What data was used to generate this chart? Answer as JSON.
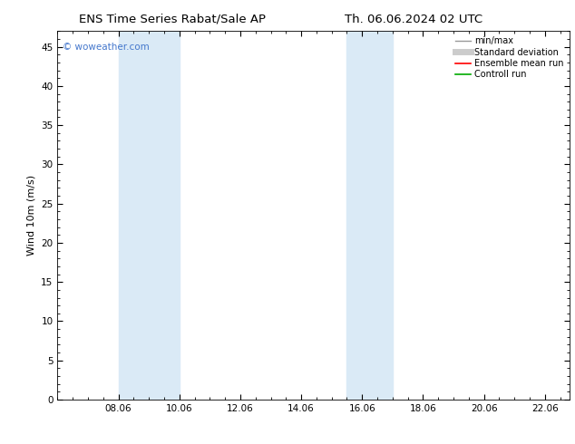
{
  "title_left": "ENS Time Series Rabat/Sale AP",
  "title_right": "Th. 06.06.2024 02 UTC",
  "ylabel": "Wind 10m (m/s)",
  "ylim": [
    0,
    47
  ],
  "yticks": [
    0,
    5,
    10,
    15,
    20,
    25,
    30,
    35,
    40,
    45
  ],
  "xtick_labels": [
    "08.06",
    "10.06",
    "12.06",
    "14.06",
    "16.06",
    "18.06",
    "20.06",
    "22.06"
  ],
  "xtick_positions": [
    8,
    10,
    12,
    14,
    16,
    18,
    20,
    22
  ],
  "xmin": 6.0,
  "xmax": 22.8,
  "shaded_bands": [
    {
      "x_start": 8.0,
      "x_end": 10.0,
      "color": "#daeaf6",
      "alpha": 1.0
    },
    {
      "x_start": 15.5,
      "x_end": 17.0,
      "color": "#daeaf6",
      "alpha": 1.0
    }
  ],
  "watermark_text": "© woweather.com",
  "watermark_color": "#4477cc",
  "background_color": "#ffffff",
  "legend_entries": [
    {
      "label": "min/max",
      "color": "#999999",
      "lw": 1.0
    },
    {
      "label": "Standard deviation",
      "color": "#cccccc",
      "lw": 5
    },
    {
      "label": "Ensemble mean run",
      "color": "#ff0000",
      "lw": 1.2
    },
    {
      "label": "Controll run",
      "color": "#00aa00",
      "lw": 1.2
    }
  ],
  "title_fontsize": 9.5,
  "tick_fontsize": 7.5,
  "ylabel_fontsize": 8.0,
  "legend_fontsize": 7.0,
  "watermark_fontsize": 7.5
}
